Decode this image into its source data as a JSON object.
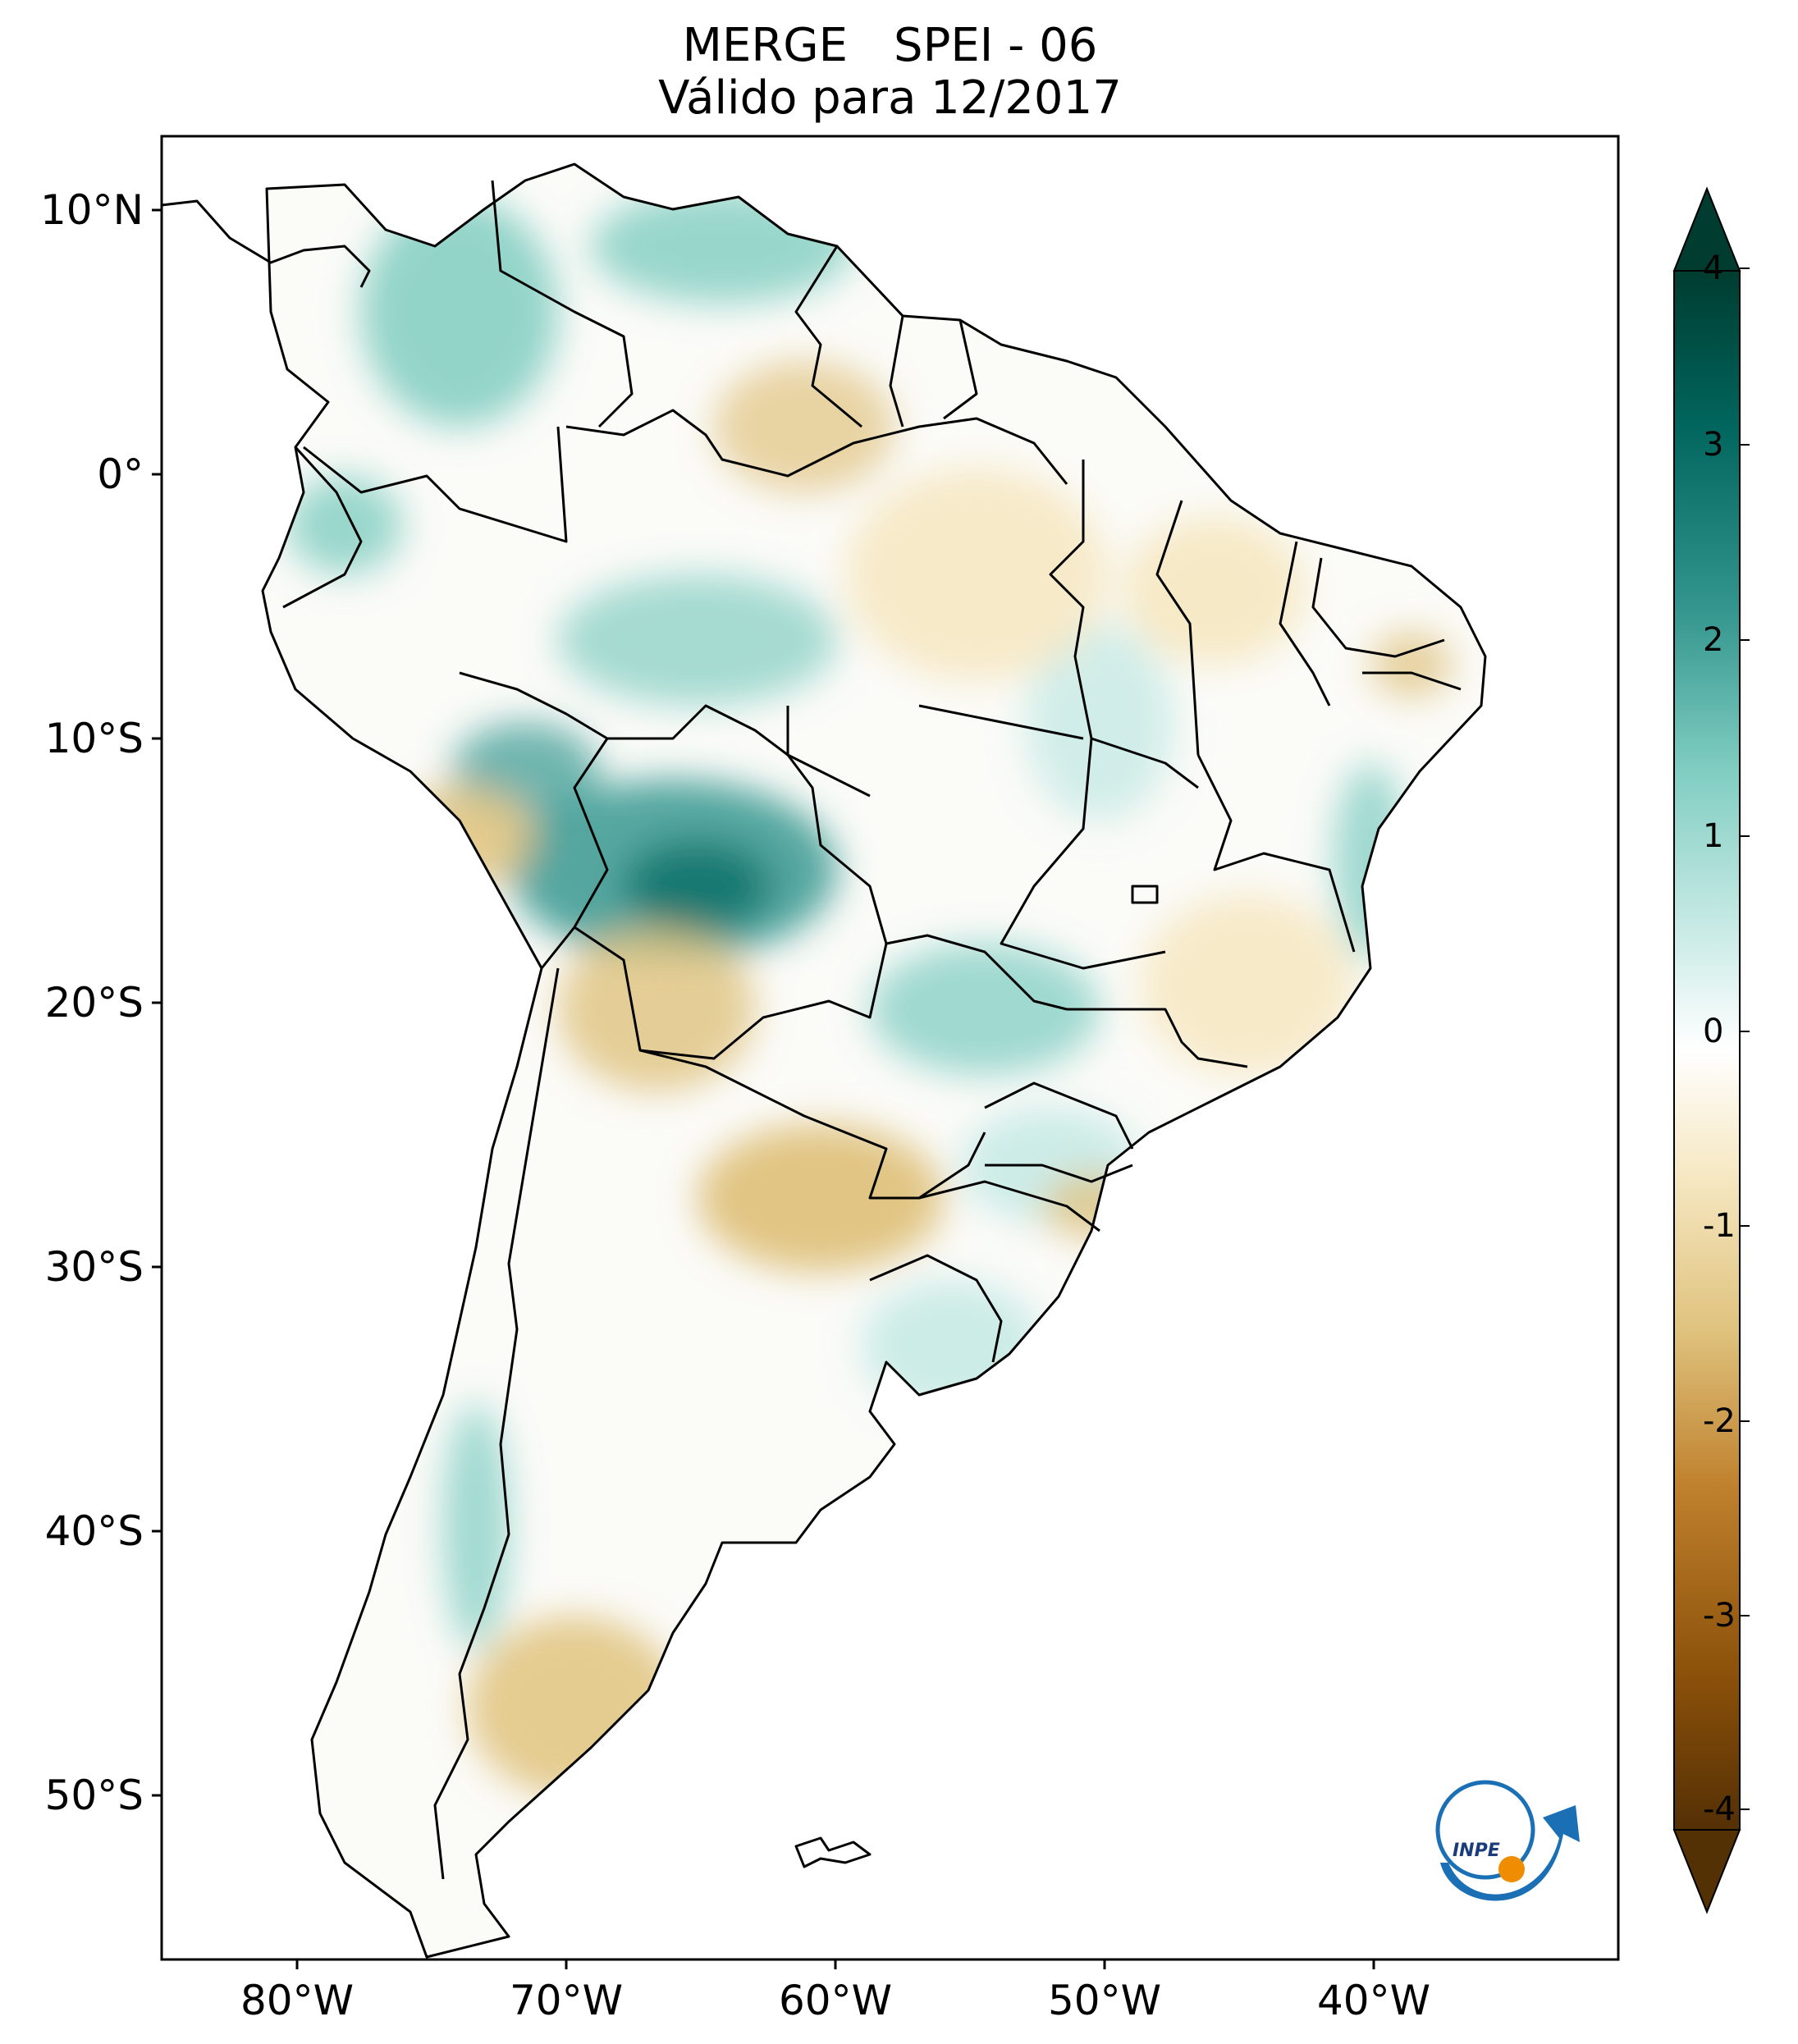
{
  "title": {
    "part1": "MERGE",
    "part2": "SPEI - 06",
    "line2": "Válido para 12/2017"
  },
  "axes": {
    "lat_labels": [
      "10°N",
      "0°",
      "10°S",
      "20°S",
      "30°S",
      "40°S",
      "50°S"
    ],
    "lon_labels": [
      "80°W",
      "70°W",
      "60°W",
      "50°W",
      "40°W"
    ],
    "lon_range": [
      -85,
      -31
    ],
    "lat_range": [
      -56,
      13
    ],
    "projection": "Plate Carrée"
  },
  "colorbar": {
    "tick_labels": [
      "4",
      "3",
      "2",
      "1",
      "0",
      "-1",
      "-2",
      "-3",
      "-4"
    ],
    "range": [
      -4,
      4
    ],
    "extend": "both",
    "colormap": "BrBG",
    "colors": [
      "#543005",
      "#8c510a",
      "#bf812d",
      "#dfc27d",
      "#f6e8c3",
      "#ffffff",
      "#c7eae5",
      "#80cdc1",
      "#35978f",
      "#01665e",
      "#003c30"
    ]
  },
  "logo": {
    "text": "INPE",
    "colors": {
      "blue": "#1a6fb5",
      "orange": "#f08c00"
    }
  },
  "map_features": {
    "wet_regions": [
      "Bolivia lowlands",
      "Colombia",
      "Venezuela",
      "southern Peru",
      "Mato Grosso do Sul",
      "Uruguay",
      "Chile coast"
    ],
    "dry_regions": [
      "Paraguay",
      "northern Argentina",
      "Patagonia",
      "Pará",
      "Maranhão",
      "Piauí",
      "Minas Gerais",
      "southern Peru highlands"
    ]
  }
}
